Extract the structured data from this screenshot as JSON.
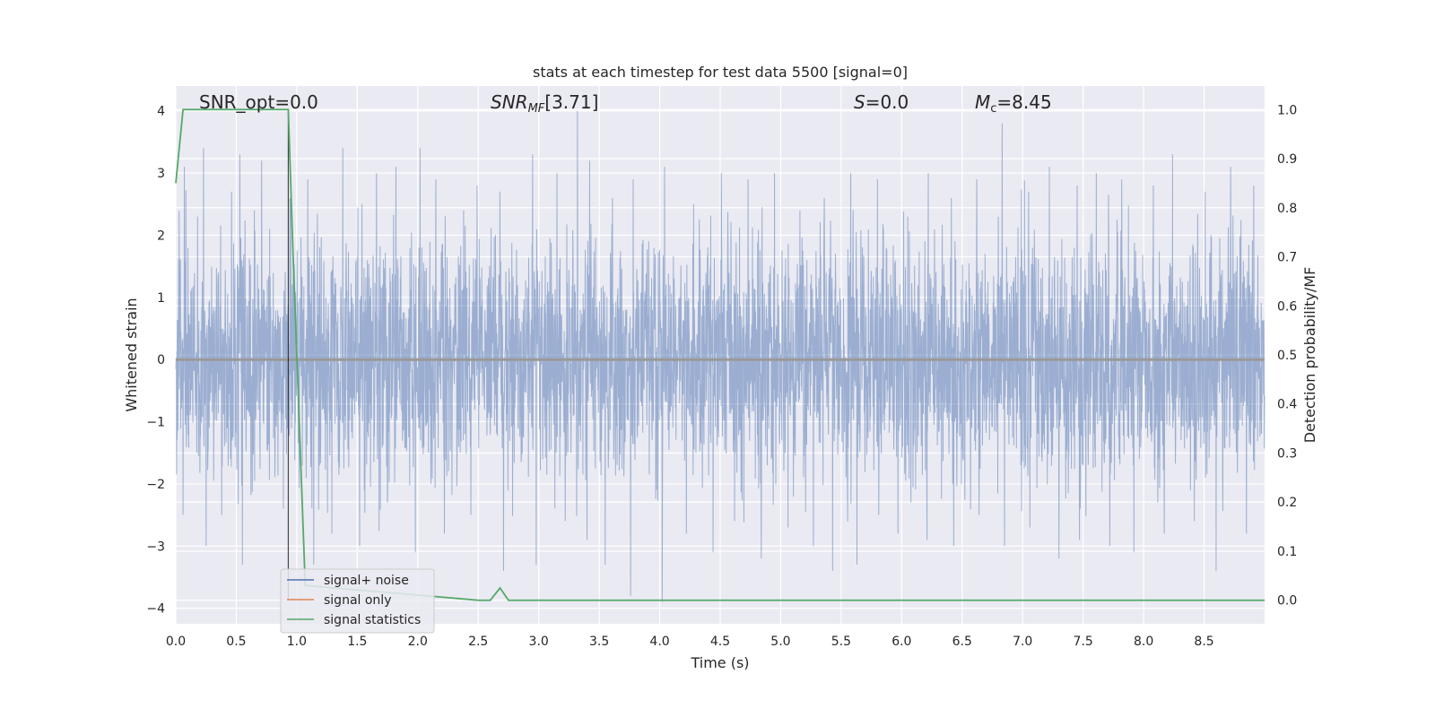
{
  "chart_data": {
    "type": "line",
    "title": "stats at each timestep for test data 5500 [signal=0]",
    "xlabel": "Time (s)",
    "ylabel": "Whitened strain",
    "y2label": "Detection probability/MF",
    "xlim": [
      0.0,
      9.0
    ],
    "ylim": [
      -4.25,
      4.4
    ],
    "y2lim": [
      -0.048,
      1.048
    ],
    "xticks": [
      "0.0",
      "0.5",
      "1.0",
      "1.5",
      "2.0",
      "2.5",
      "3.0",
      "3.5",
      "4.0",
      "4.5",
      "5.0",
      "5.5",
      "6.0",
      "6.5",
      "7.0",
      "7.5",
      "8.0",
      "8.5"
    ],
    "yticks": [
      "4",
      "3",
      "2",
      "1",
      "0",
      "−1",
      "−2",
      "−3",
      "−4"
    ],
    "y2ticks": [
      "1.0",
      "0.9",
      "0.8",
      "0.7",
      "0.6",
      "0.5",
      "0.4",
      "0.3",
      "0.2",
      "0.1",
      "0.0"
    ],
    "grid": true,
    "legend_position": "lower-left",
    "colors": {
      "noise": "#4c72b0",
      "signal": "#dd8452",
      "stats": "#55a868",
      "marker": "#000000",
      "background": "#eaeaf2"
    },
    "annotations": {
      "snr_opt": "SNR_opt=0.0",
      "snr_mf": "[3.71]",
      "s_value": "=0.0",
      "mc_value": "=8.45"
    },
    "series": [
      {
        "name": "signal+ noise",
        "axis": "left",
        "description_of_envelope": "noise band",
        "peaks_x": [
          0.07,
          0.18,
          0.23,
          0.46,
          0.53,
          0.65,
          0.71,
          0.95,
          1.09,
          1.38,
          1.54,
          1.66,
          1.82,
          2.02,
          2.15,
          2.38,
          2.49,
          2.68,
          2.95,
          3.15,
          3.32,
          3.42,
          3.61,
          3.78,
          4.04,
          4.28,
          4.51,
          4.73,
          4.95,
          5.16,
          5.36,
          5.58,
          5.8,
          6.05,
          6.22,
          6.41,
          6.62,
          6.83,
          7.05,
          7.22,
          7.45,
          7.61,
          7.82,
          8.08,
          8.24,
          8.51,
          8.72,
          8.91
        ],
        "peaks_y": [
          3.1,
          2.3,
          3.4,
          2.7,
          3.3,
          2.4,
          3.2,
          2.6,
          2.9,
          3.4,
          2.5,
          3.0,
          3.1,
          3.4,
          2.9,
          2.4,
          2.8,
          2.7,
          3.3,
          3.0,
          4.0,
          3.2,
          2.6,
          2.9,
          3.1,
          2.5,
          3.0,
          2.9,
          3.0,
          2.4,
          2.6,
          3.0,
          2.9,
          2.3,
          3.0,
          2.6,
          2.9,
          3.8,
          2.7,
          3.1,
          2.8,
          3.0,
          2.9,
          2.8,
          3.3,
          2.7,
          3.1,
          2.8
        ],
        "troughs_x": [
          0.06,
          0.25,
          0.38,
          0.55,
          0.89,
          1.14,
          1.29,
          1.52,
          1.75,
          1.98,
          2.22,
          2.44,
          2.71,
          2.98,
          3.22,
          3.4,
          3.55,
          3.76,
          4.02,
          4.22,
          4.44,
          4.62,
          4.84,
          5.06,
          5.27,
          5.43,
          5.63,
          5.81,
          5.97,
          6.21,
          6.43,
          6.64,
          6.85,
          7.06,
          7.3,
          7.47,
          7.72,
          7.92,
          8.17,
          8.42,
          8.6,
          8.85
        ],
        "troughs_y": [
          -2.5,
          -3.0,
          -2.5,
          -3.3,
          -2.4,
          -3.3,
          -2.8,
          -3.0,
          -2.3,
          -3.1,
          -2.8,
          -2.5,
          -3.4,
          -3.3,
          -2.6,
          -2.9,
          -3.3,
          -3.8,
          -3.9,
          -2.8,
          -3.1,
          -2.6,
          -3.2,
          -2.7,
          -3.0,
          -3.4,
          -3.3,
          -2.5,
          -2.8,
          -2.9,
          -3.0,
          -2.5,
          -3.0,
          -2.7,
          -3.2,
          -2.9,
          -3.0,
          -3.1,
          -2.8,
          -2.6,
          -3.4,
          -2.8
        ]
      },
      {
        "name": "signal only",
        "axis": "left",
        "x": [
          0.0,
          9.0
        ],
        "y": [
          0.0,
          0.0
        ]
      },
      {
        "name": "signal statistics",
        "axis": "right",
        "x": [
          0.0,
          0.06,
          0.1,
          0.5,
          0.93,
          0.97,
          1.03,
          1.07,
          2.5,
          2.6,
          2.68,
          2.75,
          4.0,
          6.0,
          8.0,
          9.0
        ],
        "y": [
          0.85,
          1.0,
          1.0,
          1.0,
          1.0,
          0.7,
          0.3,
          0.03,
          0.0,
          0.0,
          0.025,
          0.0,
          0.0,
          0.0,
          0.0,
          0.0
        ]
      }
    ],
    "marker_line_x": 0.93
  }
}
